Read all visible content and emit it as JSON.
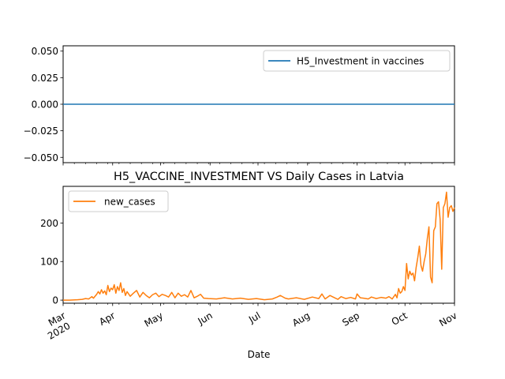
{
  "chart_data": [
    {
      "type": "line",
      "ylim": [
        -0.055,
        0.055
      ],
      "yticks": [
        "0.050",
        "0.025",
        "0.000",
        "−0.025",
        "−0.050"
      ],
      "ytick_values": [
        0.05,
        0.025,
        0.0,
        -0.025,
        -0.05
      ],
      "legend_placement": "upper-right",
      "grid": false,
      "series": [
        {
          "name": "H5_Investment in vaccines",
          "color": "#1f77b4",
          "x": [
            "2020-03-01",
            "2020-11-01"
          ],
          "y": [
            0,
            0
          ]
        }
      ]
    },
    {
      "type": "line",
      "title": "H5_VACCINE_INVESTMENT VS Daily Cases in Latvia",
      "xlabel": "Date",
      "ylim": [
        -8,
        295
      ],
      "yticks": [
        "0",
        "100",
        "200"
      ],
      "ytick_values": [
        0,
        100,
        200
      ],
      "xlim": [
        "2020-03-01",
        "2020-11-01"
      ],
      "xticks": [
        {
          "date": "2020-03-01",
          "label": "Mar",
          "sublabel": "2020"
        },
        {
          "date": "2020-04-01",
          "label": "Apr"
        },
        {
          "date": "2020-05-01",
          "label": "May"
        },
        {
          "date": "2020-06-01",
          "label": "Jun"
        },
        {
          "date": "2020-07-01",
          "label": "Jul"
        },
        {
          "date": "2020-08-01",
          "label": "Aug"
        },
        {
          "date": "2020-09-01",
          "label": "Sep"
        },
        {
          "date": "2020-10-01",
          "label": "Oct"
        },
        {
          "date": "2020-11-01",
          "label": "Nov"
        }
      ],
      "legend_placement": "upper-left",
      "grid": false,
      "series": [
        {
          "name": "new_cases",
          "color": "#ff7f0e",
          "x": [
            "2020-03-01",
            "2020-03-05",
            "2020-03-10",
            "2020-03-13",
            "2020-03-15",
            "2020-03-17",
            "2020-03-19",
            "2020-03-20",
            "2020-03-22",
            "2020-03-23",
            "2020-03-24",
            "2020-03-25",
            "2020-03-26",
            "2020-03-27",
            "2020-03-28",
            "2020-03-29",
            "2020-03-30",
            "2020-03-31",
            "2020-04-01",
            "2020-04-02",
            "2020-04-03",
            "2020-04-04",
            "2020-04-05",
            "2020-04-06",
            "2020-04-07",
            "2020-04-08",
            "2020-04-09",
            "2020-04-10",
            "2020-04-12",
            "2020-04-14",
            "2020-04-16",
            "2020-04-18",
            "2020-04-20",
            "2020-04-22",
            "2020-04-24",
            "2020-04-26",
            "2020-04-28",
            "2020-04-30",
            "2020-05-02",
            "2020-05-04",
            "2020-05-06",
            "2020-05-08",
            "2020-05-10",
            "2020-05-12",
            "2020-05-14",
            "2020-05-16",
            "2020-05-18",
            "2020-05-20",
            "2020-05-22",
            "2020-05-24",
            "2020-05-26",
            "2020-05-28",
            "2020-05-31",
            "2020-06-05",
            "2020-06-10",
            "2020-06-15",
            "2020-06-20",
            "2020-06-25",
            "2020-06-30",
            "2020-07-05",
            "2020-07-10",
            "2020-07-13",
            "2020-07-15",
            "2020-07-18",
            "2020-07-20",
            "2020-07-25",
            "2020-07-30",
            "2020-08-04",
            "2020-08-08",
            "2020-08-10",
            "2020-08-12",
            "2020-08-15",
            "2020-08-18",
            "2020-08-20",
            "2020-08-22",
            "2020-08-25",
            "2020-08-28",
            "2020-08-31",
            "2020-09-01",
            "2020-09-03",
            "2020-09-05",
            "2020-09-08",
            "2020-09-10",
            "2020-09-13",
            "2020-09-16",
            "2020-09-19",
            "2020-09-21",
            "2020-09-23",
            "2020-09-25",
            "2020-09-26",
            "2020-09-27",
            "2020-09-28",
            "2020-09-29",
            "2020-09-30",
            "2020-10-01",
            "2020-10-02",
            "2020-10-03",
            "2020-10-04",
            "2020-10-05",
            "2020-10-06",
            "2020-10-07",
            "2020-10-08",
            "2020-10-09",
            "2020-10-10",
            "2020-10-11",
            "2020-10-12",
            "2020-10-13",
            "2020-10-14",
            "2020-10-15",
            "2020-10-16",
            "2020-10-17",
            "2020-10-18",
            "2020-10-19",
            "2020-10-20",
            "2020-10-21",
            "2020-10-22",
            "2020-10-23",
            "2020-10-24",
            "2020-10-25",
            "2020-10-26",
            "2020-10-27",
            "2020-10-28",
            "2020-10-29",
            "2020-10-30",
            "2020-10-31",
            "2020-11-01"
          ],
          "y": [
            0,
            0,
            1,
            2,
            4,
            3,
            9,
            5,
            15,
            22,
            16,
            27,
            18,
            24,
            14,
            38,
            22,
            31,
            27,
            40,
            18,
            35,
            25,
            45,
            20,
            30,
            12,
            22,
            10,
            18,
            25,
            8,
            20,
            12,
            6,
            14,
            18,
            9,
            15,
            12,
            8,
            20,
            6,
            18,
            10,
            14,
            8,
            25,
            6,
            10,
            15,
            5,
            4,
            3,
            6,
            3,
            5,
            2,
            4,
            1,
            3,
            8,
            12,
            5,
            3,
            6,
            2,
            8,
            4,
            16,
            3,
            12,
            6,
            2,
            9,
            4,
            7,
            3,
            16,
            6,
            5,
            3,
            8,
            4,
            7,
            5,
            9,
            3,
            15,
            6,
            30,
            18,
            22,
            35,
            25,
            95,
            55,
            75,
            65,
            70,
            50,
            85,
            110,
            140,
            90,
            75,
            100,
            120,
            160,
            190,
            60,
            45,
            180,
            190,
            250,
            255,
            210,
            80,
            240,
            250,
            280,
            215,
            240,
            245,
            230,
            240
          ]
        }
      ]
    }
  ]
}
